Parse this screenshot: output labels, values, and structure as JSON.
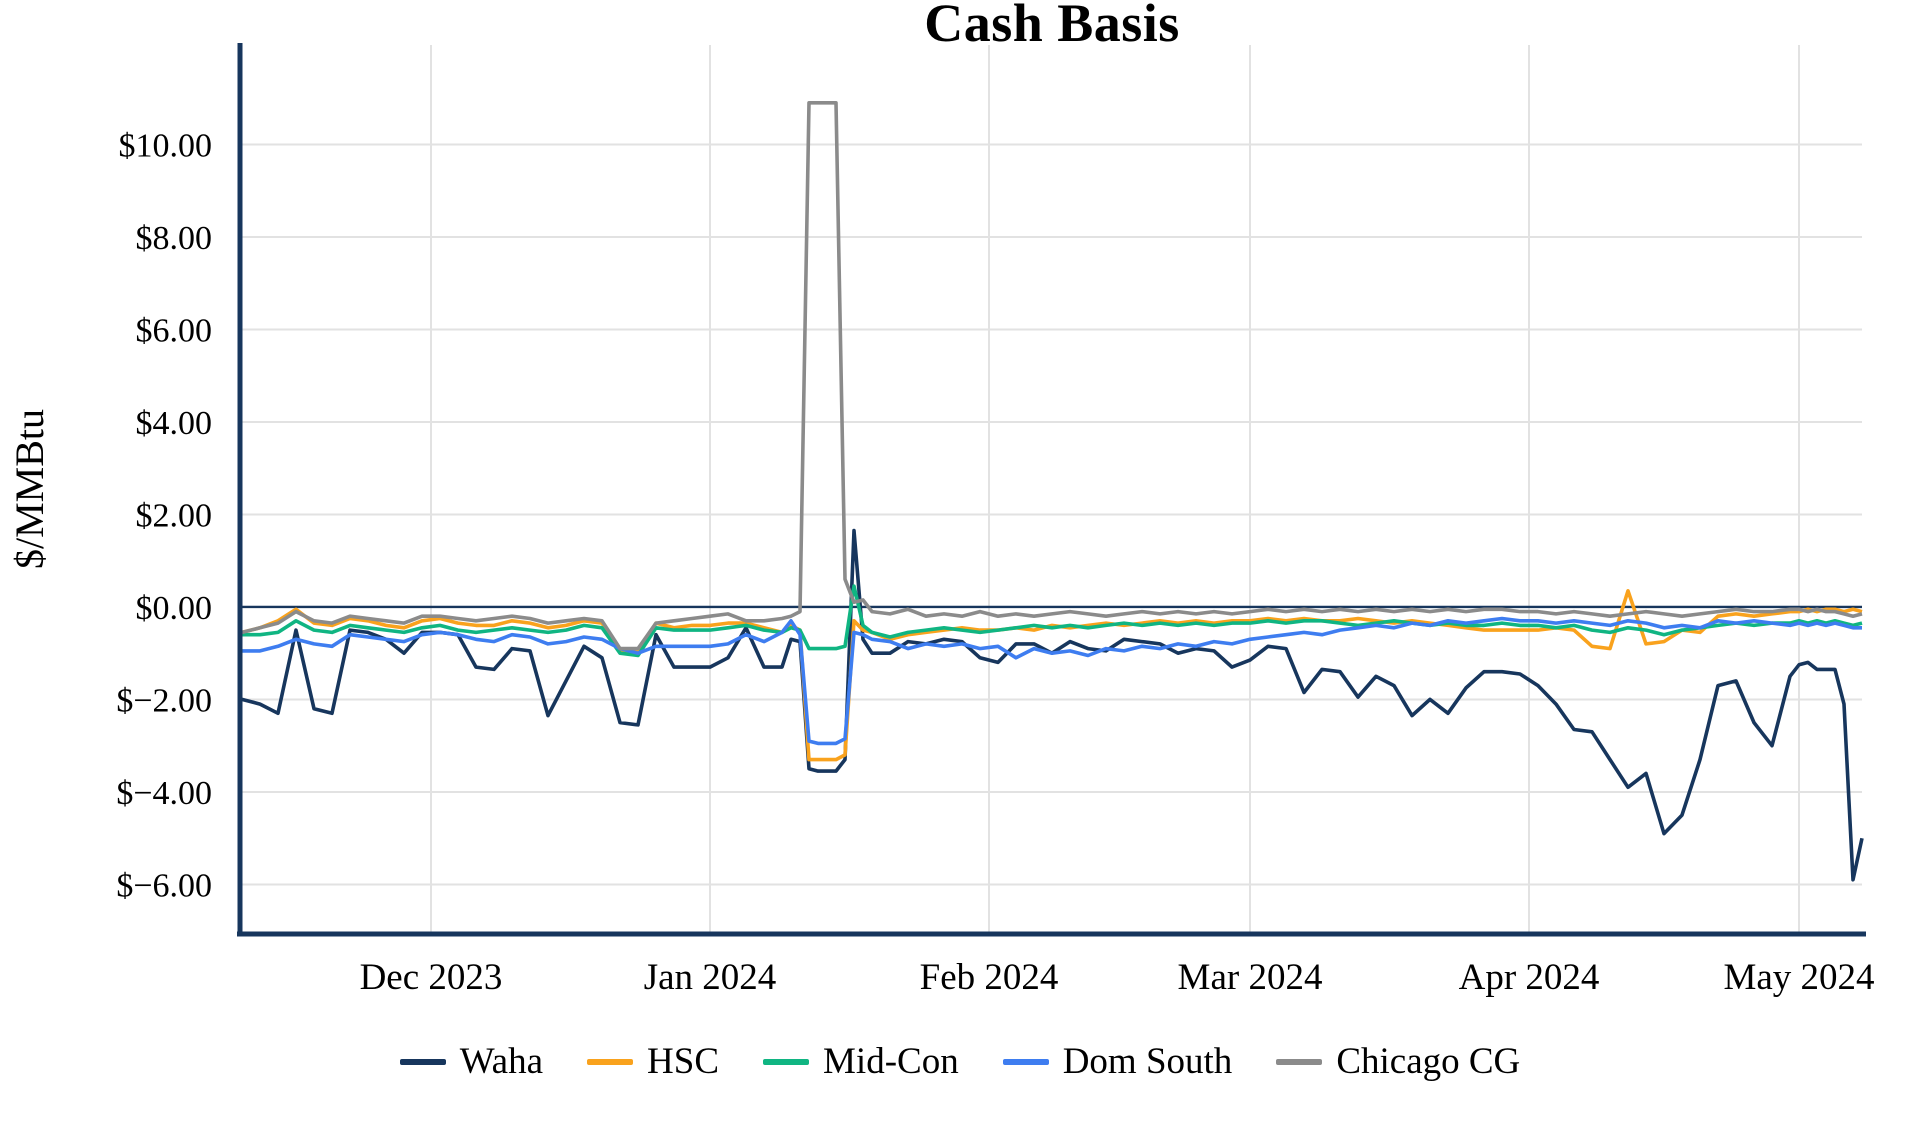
{
  "title": "Cash Basis",
  "y_axis_title": "$/MMBtu",
  "colors": {
    "waha": "#17365d",
    "hsc": "#f9a21d",
    "midcon": "#10b582",
    "domsouth": "#3e7df0",
    "chicago": "#8b8b8b",
    "gridline": "#e2e2e2",
    "axis": "#17365d",
    "zero_line": "#17365d",
    "background": "#ffffff",
    "text": "#000000"
  },
  "chart_data": {
    "type": "line",
    "title": "Cash Basis",
    "xlabel": "",
    "ylabel": "$/MMBtu",
    "ylim": [
      -7.05,
      12.15
    ],
    "grid": true,
    "legend_position": "bottom",
    "x_range": [
      "2023-11-10",
      "2024-05-08"
    ],
    "y_ticks": [
      {
        "value": 10,
        "label": "$10.00"
      },
      {
        "value": 8,
        "label": "$8.00"
      },
      {
        "value": 6,
        "label": "$6.00"
      },
      {
        "value": 4,
        "label": "$4.00"
      },
      {
        "value": 2,
        "label": "$2.00"
      },
      {
        "value": 0,
        "label": "$0.00"
      },
      {
        "value": -2,
        "label": "$−2.00"
      },
      {
        "value": -4,
        "label": "$−4.00"
      },
      {
        "value": -6,
        "label": "$−6.00"
      }
    ],
    "x_ticks": [
      {
        "date": "2023-12-01",
        "label": "Dec 2023"
      },
      {
        "date": "2024-01-01",
        "label": "Jan 2024"
      },
      {
        "date": "2024-02-01",
        "label": "Feb 2024"
      },
      {
        "date": "2024-03-01",
        "label": "Mar 2024"
      },
      {
        "date": "2024-04-01",
        "label": "Apr 2024"
      },
      {
        "date": "2024-05-01",
        "label": "May 2024"
      }
    ],
    "x": [
      "2023-11-10",
      "2023-11-12",
      "2023-11-14",
      "2023-11-16",
      "2023-11-18",
      "2023-11-20",
      "2023-11-22",
      "2023-11-24",
      "2023-11-26",
      "2023-11-28",
      "2023-11-30",
      "2023-12-02",
      "2023-12-04",
      "2023-12-06",
      "2023-12-08",
      "2023-12-10",
      "2023-12-12",
      "2023-12-14",
      "2023-12-16",
      "2023-12-18",
      "2023-12-20",
      "2023-12-22",
      "2023-12-24",
      "2023-12-26",
      "2023-12-28",
      "2023-12-30",
      "2024-01-01",
      "2024-01-03",
      "2024-01-05",
      "2024-01-07",
      "2024-01-09",
      "2024-01-10",
      "2024-01-11",
      "2024-01-12",
      "2024-01-13",
      "2024-01-14",
      "2024-01-15",
      "2024-01-16",
      "2024-01-17",
      "2024-01-18",
      "2024-01-19",
      "2024-01-21",
      "2024-01-23",
      "2024-01-25",
      "2024-01-27",
      "2024-01-29",
      "2024-01-31",
      "2024-02-02",
      "2024-02-04",
      "2024-02-06",
      "2024-02-08",
      "2024-02-10",
      "2024-02-12",
      "2024-02-14",
      "2024-02-16",
      "2024-02-18",
      "2024-02-20",
      "2024-02-22",
      "2024-02-24",
      "2024-02-26",
      "2024-02-28",
      "2024-03-01",
      "2024-03-03",
      "2024-03-05",
      "2024-03-07",
      "2024-03-09",
      "2024-03-11",
      "2024-03-13",
      "2024-03-15",
      "2024-03-17",
      "2024-03-19",
      "2024-03-21",
      "2024-03-23",
      "2024-03-25",
      "2024-03-27",
      "2024-03-29",
      "2024-03-31",
      "2024-04-02",
      "2024-04-04",
      "2024-04-06",
      "2024-04-08",
      "2024-04-10",
      "2024-04-12",
      "2024-04-14",
      "2024-04-16",
      "2024-04-18",
      "2024-04-20",
      "2024-04-22",
      "2024-04-24",
      "2024-04-26",
      "2024-04-28",
      "2024-04-30",
      "2024-05-01",
      "2024-05-02",
      "2024-05-03",
      "2024-05-04",
      "2024-05-05",
      "2024-05-06",
      "2024-05-07",
      "2024-05-08"
    ],
    "series": [
      {
        "name": "Waha",
        "color": "#17365d",
        "values": [
          -2.0,
          -2.1,
          -2.3,
          -0.5,
          -2.2,
          -2.3,
          -0.5,
          -0.55,
          -0.7,
          -1.0,
          -0.55,
          -0.55,
          -0.6,
          -1.3,
          -1.35,
          -0.9,
          -0.95,
          -2.35,
          -1.6,
          -0.85,
          -1.1,
          -2.5,
          -2.55,
          -0.6,
          -1.3,
          -1.3,
          -1.3,
          -1.1,
          -0.45,
          -1.3,
          -1.3,
          -0.7,
          -0.75,
          -3.5,
          -3.55,
          -3.55,
          -3.55,
          -3.3,
          1.65,
          -0.7,
          -1.0,
          -1.0,
          -0.75,
          -0.8,
          -0.7,
          -0.75,
          -1.1,
          -1.2,
          -0.8,
          -0.8,
          -1.0,
          -0.75,
          -0.9,
          -0.95,
          -0.7,
          -0.75,
          -0.8,
          -1.0,
          -0.9,
          -0.95,
          -1.3,
          -1.15,
          -0.85,
          -0.9,
          -1.85,
          -1.35,
          -1.4,
          -1.95,
          -1.5,
          -1.7,
          -2.35,
          -2.0,
          -2.3,
          -1.75,
          -1.4,
          -1.4,
          -1.45,
          -1.7,
          -2.1,
          -2.65,
          -2.7,
          -3.3,
          -3.9,
          -3.6,
          -4.9,
          -4.5,
          -3.3,
          -1.7,
          -1.6,
          -2.5,
          -3.0,
          -1.5,
          -1.25,
          -1.2,
          -1.35,
          -1.35,
          -1.35,
          -2.1,
          -5.9,
          -5.0
        ]
      },
      {
        "name": "HSC",
        "color": "#f9a21d",
        "values": [
          -0.55,
          -0.45,
          -0.3,
          -0.05,
          -0.35,
          -0.4,
          -0.25,
          -0.3,
          -0.4,
          -0.45,
          -0.3,
          -0.25,
          -0.35,
          -0.4,
          -0.4,
          -0.3,
          -0.35,
          -0.45,
          -0.4,
          -0.3,
          -0.35,
          -0.95,
          -0.95,
          -0.35,
          -0.45,
          -0.4,
          -0.4,
          -0.35,
          -0.35,
          -0.45,
          -0.55,
          -0.4,
          -0.5,
          -3.3,
          -3.3,
          -3.3,
          -3.3,
          -3.2,
          -0.3,
          -0.5,
          -0.55,
          -0.7,
          -0.6,
          -0.55,
          -0.5,
          -0.45,
          -0.5,
          -0.5,
          -0.45,
          -0.5,
          -0.4,
          -0.45,
          -0.4,
          -0.35,
          -0.4,
          -0.35,
          -0.3,
          -0.35,
          -0.3,
          -0.35,
          -0.3,
          -0.3,
          -0.25,
          -0.3,
          -0.25,
          -0.3,
          -0.3,
          -0.25,
          -0.3,
          -0.35,
          -0.3,
          -0.35,
          -0.4,
          -0.45,
          -0.5,
          -0.5,
          -0.5,
          -0.5,
          -0.45,
          -0.5,
          -0.85,
          -0.9,
          0.35,
          -0.8,
          -0.75,
          -0.5,
          -0.55,
          -0.2,
          -0.15,
          -0.2,
          -0.15,
          -0.1,
          -0.1,
          -0.05,
          -0.1,
          -0.05,
          -0.05,
          -0.1,
          -0.05,
          -0.1
        ]
      },
      {
        "name": "Mid-Con",
        "color": "#10b582",
        "values": [
          -0.6,
          -0.6,
          -0.55,
          -0.3,
          -0.5,
          -0.55,
          -0.4,
          -0.45,
          -0.5,
          -0.55,
          -0.45,
          -0.4,
          -0.5,
          -0.55,
          -0.5,
          -0.45,
          -0.5,
          -0.55,
          -0.5,
          -0.4,
          -0.45,
          -1.0,
          -1.05,
          -0.45,
          -0.5,
          -0.5,
          -0.5,
          -0.45,
          -0.4,
          -0.5,
          -0.55,
          -0.45,
          -0.5,
          -0.9,
          -0.9,
          -0.9,
          -0.9,
          -0.85,
          0.45,
          -0.4,
          -0.55,
          -0.65,
          -0.55,
          -0.5,
          -0.45,
          -0.5,
          -0.55,
          -0.5,
          -0.45,
          -0.4,
          -0.45,
          -0.4,
          -0.45,
          -0.4,
          -0.35,
          -0.4,
          -0.35,
          -0.4,
          -0.35,
          -0.4,
          -0.35,
          -0.35,
          -0.3,
          -0.35,
          -0.3,
          -0.3,
          -0.35,
          -0.4,
          -0.35,
          -0.3,
          -0.35,
          -0.4,
          -0.35,
          -0.4,
          -0.4,
          -0.35,
          -0.4,
          -0.4,
          -0.45,
          -0.4,
          -0.5,
          -0.55,
          -0.45,
          -0.5,
          -0.6,
          -0.5,
          -0.45,
          -0.4,
          -0.35,
          -0.4,
          -0.35,
          -0.35,
          -0.3,
          -0.35,
          -0.3,
          -0.35,
          -0.3,
          -0.35,
          -0.4,
          -0.35
        ]
      },
      {
        "name": "Dom South",
        "color": "#3e7df0",
        "values": [
          -0.95,
          -0.95,
          -0.85,
          -0.7,
          -0.8,
          -0.85,
          -0.6,
          -0.65,
          -0.7,
          -0.75,
          -0.6,
          -0.55,
          -0.6,
          -0.7,
          -0.75,
          -0.6,
          -0.65,
          -0.8,
          -0.75,
          -0.65,
          -0.7,
          -0.9,
          -1.0,
          -0.85,
          -0.85,
          -0.85,
          -0.85,
          -0.8,
          -0.6,
          -0.75,
          -0.55,
          -0.3,
          -0.6,
          -2.9,
          -2.95,
          -2.95,
          -2.95,
          -2.85,
          -0.55,
          -0.6,
          -0.7,
          -0.75,
          -0.9,
          -0.8,
          -0.85,
          -0.8,
          -0.9,
          -0.85,
          -1.1,
          -0.9,
          -1.0,
          -0.95,
          -1.05,
          -0.9,
          -0.95,
          -0.85,
          -0.9,
          -0.8,
          -0.85,
          -0.75,
          -0.8,
          -0.7,
          -0.65,
          -0.6,
          -0.55,
          -0.6,
          -0.5,
          -0.45,
          -0.4,
          -0.45,
          -0.35,
          -0.4,
          -0.3,
          -0.35,
          -0.3,
          -0.25,
          -0.3,
          -0.3,
          -0.35,
          -0.3,
          -0.35,
          -0.4,
          -0.3,
          -0.35,
          -0.45,
          -0.4,
          -0.45,
          -0.3,
          -0.35,
          -0.3,
          -0.35,
          -0.4,
          -0.35,
          -0.4,
          -0.35,
          -0.4,
          -0.35,
          -0.4,
          -0.45,
          -0.45
        ]
      },
      {
        "name": "Chicago CG",
        "color": "#8b8b8b",
        "values": [
          -0.55,
          -0.45,
          -0.35,
          -0.1,
          -0.3,
          -0.35,
          -0.2,
          -0.25,
          -0.3,
          -0.35,
          -0.2,
          -0.2,
          -0.25,
          -0.3,
          -0.25,
          -0.2,
          -0.25,
          -0.35,
          -0.3,
          -0.25,
          -0.3,
          -0.9,
          -0.9,
          -0.35,
          -0.3,
          -0.25,
          -0.2,
          -0.15,
          -0.3,
          -0.3,
          -0.25,
          -0.2,
          -0.1,
          10.9,
          10.9,
          10.9,
          10.9,
          0.6,
          0.1,
          0.15,
          -0.1,
          -0.15,
          -0.05,
          -0.2,
          -0.15,
          -0.2,
          -0.1,
          -0.2,
          -0.15,
          -0.2,
          -0.15,
          -0.1,
          -0.15,
          -0.2,
          -0.15,
          -0.1,
          -0.15,
          -0.1,
          -0.15,
          -0.1,
          -0.15,
          -0.1,
          -0.05,
          -0.1,
          -0.05,
          -0.1,
          -0.05,
          -0.1,
          -0.05,
          -0.1,
          -0.05,
          -0.1,
          -0.05,
          -0.1,
          -0.05,
          -0.05,
          -0.1,
          -0.1,
          -0.15,
          -0.1,
          -0.15,
          -0.2,
          -0.15,
          -0.1,
          -0.15,
          -0.2,
          -0.15,
          -0.1,
          -0.05,
          -0.1,
          -0.1,
          -0.05,
          -0.05,
          -0.1,
          -0.05,
          -0.1,
          -0.1,
          -0.15,
          -0.2,
          -0.15
        ]
      }
    ]
  }
}
